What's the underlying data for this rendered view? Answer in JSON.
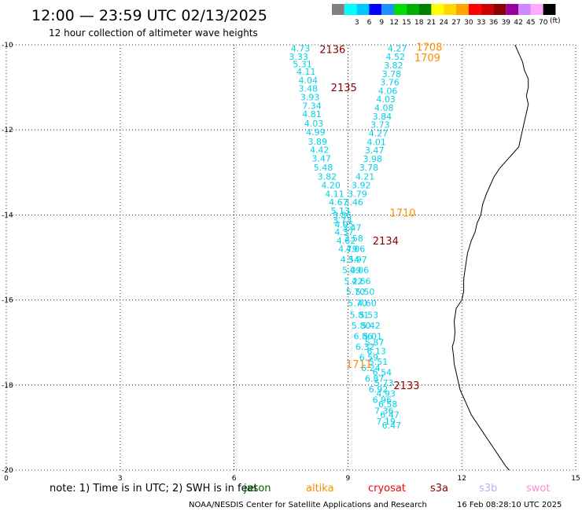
{
  "header": {
    "title": "12:00 — 23:59 UTC 02/13/2025",
    "subtitle": "12 hour collection of altimeter wave heights"
  },
  "colorbar": {
    "unit": "(ft)",
    "bins": [
      {
        "label": "",
        "color": "#808080"
      },
      {
        "label": "3",
        "color": "#00ffff"
      },
      {
        "label": "6",
        "color": "#00c8ff"
      },
      {
        "label": "9",
        "color": "#0000ff"
      },
      {
        "label": "12",
        "color": "#1e90ff"
      },
      {
        "label": "15",
        "color": "#00e000"
      },
      {
        "label": "18",
        "color": "#00b000"
      },
      {
        "label": "21",
        "color": "#008000"
      },
      {
        "label": "24",
        "color": "#ffff00"
      },
      {
        "label": "27",
        "color": "#ffd700"
      },
      {
        "label": "30",
        "color": "#ffa500"
      },
      {
        "label": "33",
        "color": "#ff0000"
      },
      {
        "label": "36",
        "color": "#cc0000"
      },
      {
        "label": "39",
        "color": "#8b0000"
      },
      {
        "label": "42",
        "color": "#990099"
      },
      {
        "label": "45",
        "color": "#cc88ff"
      },
      {
        "label": "70",
        "color": "#ffaaff"
      },
      {
        "label": "",
        "color": "#000000"
      }
    ]
  },
  "axes": {
    "lon_min": 0,
    "lon_max": 15,
    "lat_min": -20,
    "lat_max": -10,
    "x_ticks": [
      "0",
      "3",
      "6",
      "9",
      "12",
      "15"
    ],
    "y_ticks": [
      "-10",
      "-12",
      "-14",
      "-16",
      "-18",
      "-20"
    ],
    "grid": "dotted"
  },
  "colors": {
    "swh_text": "#00d0e8",
    "jason": "#006400",
    "altika": "#ff8c00",
    "cryosat": "#ff0000",
    "s3a": "#8b0000",
    "s3b": "#c8a8ff",
    "swot": "#ff88cc",
    "coast": "#000000"
  },
  "footer": {
    "note": "note:  1) Time is in UTC;  2) SWH is in feet",
    "credit": "NOAA/NESDIS Center for Satellite Applications and Research",
    "timestamp": "16 Feb 08:28:10 UTC 2025",
    "legend": [
      {
        "name": "jason",
        "color": "#006400"
      },
      {
        "name": "altika",
        "color": "#ff8c00"
      },
      {
        "name": "cryosat",
        "color": "#ff0000"
      },
      {
        "name": "s3a",
        "color": "#8b0000"
      },
      {
        "name": "s3b",
        "color": "#c8a8ff"
      },
      {
        "name": "swot",
        "color": "#ff88cc"
      }
    ]
  },
  "swh": [
    {
      "lon": 7.75,
      "lat": -10.08,
      "v": "4.73"
    },
    {
      "lon": 7.7,
      "lat": -10.28,
      "v": "3.33"
    },
    {
      "lon": 7.8,
      "lat": -10.45,
      "v": "5.31"
    },
    {
      "lon": 7.9,
      "lat": -10.63,
      "v": "4.11"
    },
    {
      "lon": 7.95,
      "lat": -10.83,
      "v": "4.04"
    },
    {
      "lon": 7.95,
      "lat": -11.03,
      "v": "3.48"
    },
    {
      "lon": 8.0,
      "lat": -11.23,
      "v": "3.93"
    },
    {
      "lon": 8.05,
      "lat": -11.43,
      "v": "7.34"
    },
    {
      "lon": 8.05,
      "lat": -11.63,
      "v": "4.81"
    },
    {
      "lon": 8.1,
      "lat": -11.85,
      "v": "4.03"
    },
    {
      "lon": 8.15,
      "lat": -12.05,
      "v": "4.99"
    },
    {
      "lon": 8.2,
      "lat": -12.27,
      "v": "3.89"
    },
    {
      "lon": 8.25,
      "lat": -12.47,
      "v": "4.42"
    },
    {
      "lon": 8.3,
      "lat": -12.67,
      "v": "3.47"
    },
    {
      "lon": 8.35,
      "lat": -12.88,
      "v": "5.48"
    },
    {
      "lon": 8.45,
      "lat": -13.1,
      "v": "3.82"
    },
    {
      "lon": 8.55,
      "lat": -13.3,
      "v": "4.20"
    },
    {
      "lon": 8.65,
      "lat": -13.5,
      "v": "4.11"
    },
    {
      "lon": 8.75,
      "lat": -13.7,
      "v": "4.67"
    },
    {
      "lon": 8.8,
      "lat": -13.9,
      "v": "5.13"
    },
    {
      "lon": 8.85,
      "lat": -14.0,
      "v": "3.86"
    },
    {
      "lon": 8.85,
      "lat": -14.12,
      "v": "3.73"
    },
    {
      "lon": 8.9,
      "lat": -14.22,
      "v": "4.05"
    },
    {
      "lon": 8.9,
      "lat": -14.4,
      "v": "4.37"
    },
    {
      "lon": 8.95,
      "lat": -14.6,
      "v": "4.62"
    },
    {
      "lon": 9.0,
      "lat": -14.8,
      "v": "4.79"
    },
    {
      "lon": 9.05,
      "lat": -15.05,
      "v": "4.54"
    },
    {
      "lon": 9.1,
      "lat": -15.3,
      "v": "5.09"
    },
    {
      "lon": 9.15,
      "lat": -15.55,
      "v": "5.22"
    },
    {
      "lon": 9.2,
      "lat": -15.8,
      "v": "5.70"
    },
    {
      "lon": 9.25,
      "lat": -16.07,
      "v": "5.70"
    },
    {
      "lon": 9.3,
      "lat": -16.35,
      "v": "5.81"
    },
    {
      "lon": 9.35,
      "lat": -16.6,
      "v": "5.80"
    },
    {
      "lon": 9.4,
      "lat": -16.85,
      "v": "6.86"
    },
    {
      "lon": 9.45,
      "lat": -17.1,
      "v": "6.32"
    },
    {
      "lon": 9.55,
      "lat": -17.35,
      "v": "6.59"
    },
    {
      "lon": 9.6,
      "lat": -17.6,
      "v": "6.24"
    },
    {
      "lon": 9.7,
      "lat": -17.85,
      "v": "6.87"
    },
    {
      "lon": 9.8,
      "lat": -18.1,
      "v": "6.92"
    },
    {
      "lon": 9.9,
      "lat": -18.35,
      "v": "6.96"
    },
    {
      "lon": 9.95,
      "lat": -18.6,
      "v": "7.36"
    },
    {
      "lon": 10.0,
      "lat": -18.85,
      "v": "7.19"
    },
    {
      "lon": 10.3,
      "lat": -10.08,
      "v": "4.27"
    },
    {
      "lon": 10.25,
      "lat": -10.28,
      "v": "4.52"
    },
    {
      "lon": 10.2,
      "lat": -10.48,
      "v": "3.82"
    },
    {
      "lon": 10.15,
      "lat": -10.68,
      "v": "3.78"
    },
    {
      "lon": 10.1,
      "lat": -10.88,
      "v": "3.76"
    },
    {
      "lon": 10.05,
      "lat": -11.08,
      "v": "4.06"
    },
    {
      "lon": 10.0,
      "lat": -11.28,
      "v": "4.03"
    },
    {
      "lon": 9.95,
      "lat": -11.48,
      "v": "4.08"
    },
    {
      "lon": 9.9,
      "lat": -11.68,
      "v": "3.84"
    },
    {
      "lon": 9.85,
      "lat": -11.88,
      "v": "3.73"
    },
    {
      "lon": 9.8,
      "lat": -12.08,
      "v": "4.27"
    },
    {
      "lon": 9.75,
      "lat": -12.28,
      "v": "4.01"
    },
    {
      "lon": 9.7,
      "lat": -12.48,
      "v": "3.47"
    },
    {
      "lon": 9.65,
      "lat": -12.68,
      "v": "3.98"
    },
    {
      "lon": 9.55,
      "lat": -12.88,
      "v": "3.78"
    },
    {
      "lon": 9.45,
      "lat": -13.1,
      "v": "4.21"
    },
    {
      "lon": 9.35,
      "lat": -13.3,
      "v": "3.92"
    },
    {
      "lon": 9.25,
      "lat": -13.5,
      "v": "3.79"
    },
    {
      "lon": 9.15,
      "lat": -13.7,
      "v": "3.46"
    },
    {
      "lon": 9.1,
      "lat": -14.3,
      "v": "3.47"
    },
    {
      "lon": 9.15,
      "lat": -14.55,
      "v": "3.58"
    },
    {
      "lon": 9.2,
      "lat": -14.8,
      "v": "4.06"
    },
    {
      "lon": 9.25,
      "lat": -15.05,
      "v": "3.97"
    },
    {
      "lon": 9.3,
      "lat": -15.3,
      "v": "4.06"
    },
    {
      "lon": 9.35,
      "lat": -15.55,
      "v": "4.66"
    },
    {
      "lon": 9.45,
      "lat": -15.8,
      "v": "5.50"
    },
    {
      "lon": 9.5,
      "lat": -16.07,
      "v": "4.60"
    },
    {
      "lon": 9.55,
      "lat": -16.35,
      "v": "5.53"
    },
    {
      "lon": 9.6,
      "lat": -16.6,
      "v": "5.42"
    },
    {
      "lon": 9.65,
      "lat": -16.85,
      "v": "5.01"
    },
    {
      "lon": 9.7,
      "lat": -17.0,
      "v": "5.87"
    },
    {
      "lon": 9.75,
      "lat": -17.2,
      "v": "6.13"
    },
    {
      "lon": 9.8,
      "lat": -17.45,
      "v": "5.51"
    },
    {
      "lon": 9.9,
      "lat": -17.7,
      "v": "6.54"
    },
    {
      "lon": 9.95,
      "lat": -17.95,
      "v": "5.73"
    },
    {
      "lon": 10.0,
      "lat": -18.2,
      "v": "4.93"
    },
    {
      "lon": 10.05,
      "lat": -18.45,
      "v": "6.58"
    },
    {
      "lon": 10.1,
      "lat": -18.7,
      "v": "6.47"
    },
    {
      "lon": 10.15,
      "lat": -18.95,
      "v": "6.47"
    }
  ],
  "times": [
    {
      "lon": 8.25,
      "lat": -10.1,
      "label": "2136",
      "sat": "s3a"
    },
    {
      "lon": 8.55,
      "lat": -11.0,
      "label": "2135",
      "sat": "s3a"
    },
    {
      "lon": 9.65,
      "lat": -14.6,
      "label": "2134",
      "sat": "s3a"
    },
    {
      "lon": 10.2,
      "lat": -18.0,
      "label": "2133",
      "sat": "s3a"
    },
    {
      "lon": 10.8,
      "lat": -10.05,
      "label": "1708",
      "sat": "altika"
    },
    {
      "lon": 10.75,
      "lat": -10.3,
      "label": "1709",
      "sat": "altika"
    },
    {
      "lon": 10.1,
      "lat": -13.95,
      "label": "1710",
      "sat": "altika"
    },
    {
      "lon": 8.95,
      "lat": -17.5,
      "label": "1711",
      "sat": "altika"
    }
  ],
  "coastline": [
    [
      13.4,
      -10.0
    ],
    [
      13.5,
      -10.2
    ],
    [
      13.6,
      -10.4
    ],
    [
      13.65,
      -10.6
    ],
    [
      13.75,
      -10.8
    ],
    [
      13.75,
      -11.0
    ],
    [
      13.7,
      -11.2
    ],
    [
      13.75,
      -11.4
    ],
    [
      13.7,
      -11.6
    ],
    [
      13.65,
      -11.8
    ],
    [
      13.6,
      -12.0
    ],
    [
      13.55,
      -12.2
    ],
    [
      13.5,
      -12.4
    ],
    [
      13.35,
      -12.55
    ],
    [
      13.2,
      -12.7
    ],
    [
      13.0,
      -12.9
    ],
    [
      12.85,
      -13.1
    ],
    [
      12.75,
      -13.3
    ],
    [
      12.65,
      -13.5
    ],
    [
      12.55,
      -13.75
    ],
    [
      12.5,
      -14.0
    ],
    [
      12.4,
      -14.2
    ],
    [
      12.35,
      -14.4
    ],
    [
      12.25,
      -14.6
    ],
    [
      12.15,
      -14.9
    ],
    [
      12.1,
      -15.2
    ],
    [
      12.05,
      -15.5
    ],
    [
      12.05,
      -15.8
    ],
    [
      12.0,
      -16.0
    ],
    [
      11.85,
      -16.2
    ],
    [
      11.8,
      -16.5
    ],
    [
      11.82,
      -16.75
    ],
    [
      11.8,
      -16.95
    ],
    [
      11.75,
      -17.1
    ],
    [
      11.78,
      -17.3
    ],
    [
      11.8,
      -17.5
    ],
    [
      11.85,
      -17.7
    ],
    [
      11.9,
      -17.9
    ],
    [
      11.95,
      -18.1
    ],
    [
      12.05,
      -18.3
    ],
    [
      12.15,
      -18.5
    ],
    [
      12.25,
      -18.7
    ],
    [
      12.4,
      -18.9
    ],
    [
      12.55,
      -19.1
    ],
    [
      12.7,
      -19.3
    ],
    [
      12.85,
      -19.5
    ],
    [
      13.0,
      -19.7
    ],
    [
      13.15,
      -19.9
    ],
    [
      13.25,
      -20.0
    ]
  ]
}
